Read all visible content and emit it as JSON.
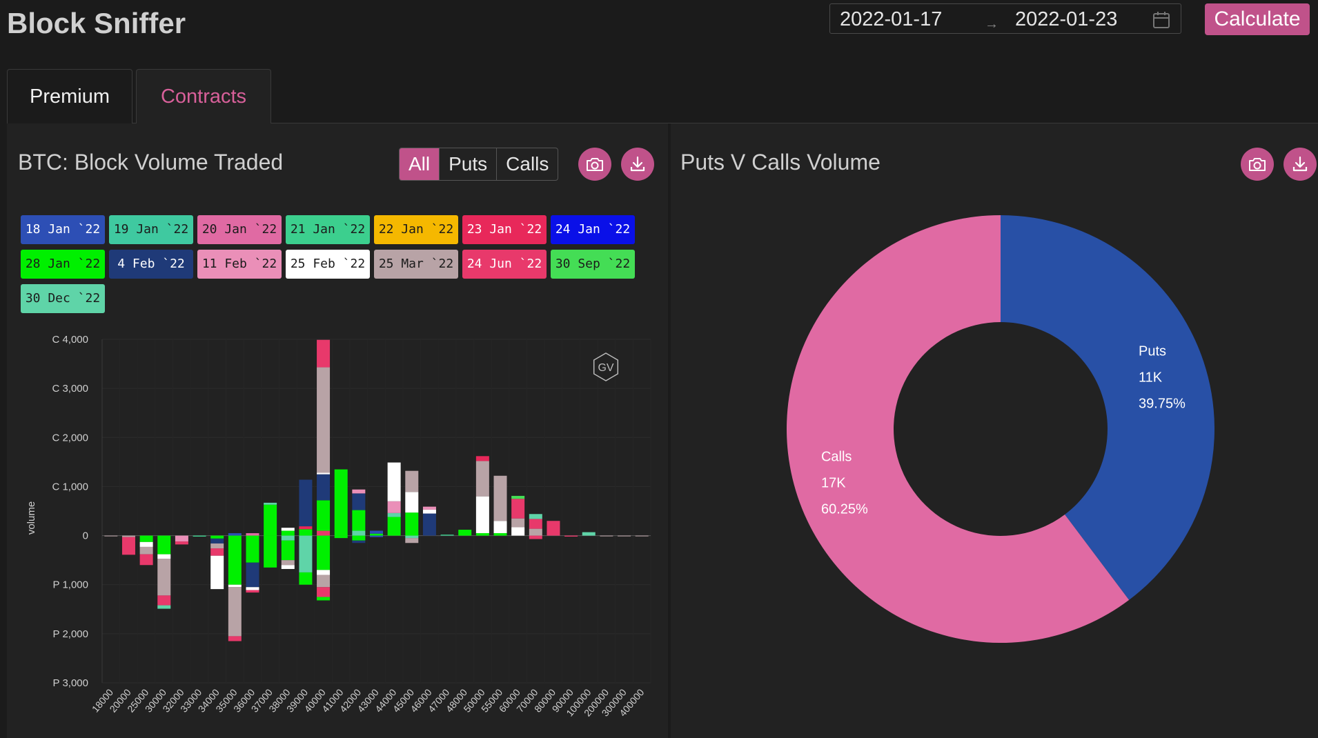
{
  "app": {
    "title": "Block Sniffer"
  },
  "date_range": {
    "start": "2022-01-17",
    "separator": "→",
    "end": "2022-01-23"
  },
  "calculate_label": "Calculate",
  "tabs": [
    {
      "label": "Premium"
    },
    {
      "label": "Contracts"
    }
  ],
  "left_panel": {
    "title": "BTC: Block Volume Traded",
    "filters": [
      "All",
      "Puts",
      "Calls"
    ],
    "active_filter": "All",
    "watermark": "GV",
    "expiries": [
      {
        "label": "18 Jan `22",
        "color": "#2d4fb5",
        "text": "#ffffff"
      },
      {
        "label": "19 Jan `22",
        "color": "#3fc9a0",
        "text": "#1b1b1b"
      },
      {
        "label": "20 Jan `22",
        "color": "#e06aa3",
        "text": "#1b1b1b"
      },
      {
        "label": "21 Jan `22",
        "color": "#3ccf8e",
        "text": "#1b1b1b"
      },
      {
        "label": "22 Jan `22",
        "color": "#f5b800",
        "text": "#1b1b1b"
      },
      {
        "label": "23 Jan `22",
        "color": "#e8285a",
        "text": "#ffffff"
      },
      {
        "label": "24 Jan `22",
        "color": "#0a10e8",
        "text": "#ffffff"
      },
      {
        "label": "28 Jan `22",
        "color": "#00f000",
        "text": "#1b1b1b"
      },
      {
        "label": "4 Feb `22",
        "color": "#1f3a78",
        "text": "#ffffff"
      },
      {
        "label": "11 Feb `22",
        "color": "#ea8fb8",
        "text": "#1b1b1b"
      },
      {
        "label": "25 Feb `22",
        "color": "#ffffff",
        "text": "#1b1b1b"
      },
      {
        "label": "25 Mar `22",
        "color": "#b8a3a6",
        "text": "#1b1b1b"
      },
      {
        "label": "24 Jun `22",
        "color": "#e8396b",
        "text": "#ffffff"
      },
      {
        "label": "30 Sep `22",
        "color": "#44dd55",
        "text": "#1b1b1b"
      },
      {
        "label": "30 Dec `22",
        "color": "#5fd4a8",
        "text": "#1b1b1b"
      }
    ]
  },
  "right_panel": {
    "title": "Puts V Calls Volume"
  },
  "icons": [
    "calendar-icon",
    "camera-icon",
    "download-icon"
  ],
  "chart_data": [
    {
      "type": "bar",
      "stacked": true,
      "ylabel": "volume",
      "ytick_labels": [
        "C 4,000",
        "C 3,000",
        "C 2,000",
        "C 1,000",
        "0",
        "P 1,000",
        "P 2,000",
        "P 3,000"
      ],
      "ylim": [
        -3000,
        4000
      ],
      "categories": [
        "18000",
        "20000",
        "25000",
        "30000",
        "32000",
        "33000",
        "34000",
        "35000",
        "36000",
        "37000",
        "38000",
        "39000",
        "40000",
        "41000",
        "42000",
        "43000",
        "44000",
        "45000",
        "46000",
        "47000",
        "48000",
        "50000",
        "55000",
        "60000",
        "70000",
        "80000",
        "90000",
        "100000",
        "200000",
        "300000",
        "400000"
      ],
      "bars": [
        {
          "strike": "18000",
          "calls": [],
          "puts": [
            [
              "#b8a3a6",
              15
            ]
          ]
        },
        {
          "strike": "20000",
          "calls": [],
          "puts": [
            [
              "#b8a3a6",
              30
            ],
            [
              "#e8396b",
              360
            ]
          ]
        },
        {
          "strike": "25000",
          "calls": [],
          "puts": [
            [
              "#00f000",
              130
            ],
            [
              "#ffffff",
              100
            ],
            [
              "#b8a3a6",
              150
            ],
            [
              "#e8396b",
              220
            ]
          ]
        },
        {
          "strike": "30000",
          "calls": [],
          "puts": [
            [
              "#00f000",
              380
            ],
            [
              "#ffffff",
              90
            ],
            [
              "#b8a3a6",
              750
            ],
            [
              "#e8396b",
              200
            ],
            [
              "#5fd4a8",
              70
            ]
          ]
        },
        {
          "strike": "32000",
          "calls": [],
          "puts": [
            [
              "#ea8fb8",
              120
            ],
            [
              "#e8396b",
              60
            ]
          ]
        },
        {
          "strike": "33000",
          "calls": [],
          "puts": [
            [
              "#3ccf8e",
              20
            ]
          ]
        },
        {
          "strike": "34000",
          "calls": [],
          "puts": [
            [
              "#00f000",
              60
            ],
            [
              "#1f3a78",
              100
            ],
            [
              "#b8a3a6",
              100
            ],
            [
              "#e8396b",
              150
            ],
            [
              "#ffffff",
              680
            ]
          ]
        },
        {
          "strike": "35000",
          "calls": [
            [
              "#2d4fb5",
              50
            ]
          ],
          "puts": [
            [
              "#00f000",
              1000
            ],
            [
              "#ffffff",
              50
            ],
            [
              "#b8a3a6",
              1000
            ],
            [
              "#e8396b",
              100
            ]
          ]
        },
        {
          "strike": "36000",
          "calls": [
            [
              "#e06aa3",
              50
            ]
          ],
          "puts": [
            [
              "#00f000",
              550
            ],
            [
              "#1f3a78",
              500
            ],
            [
              "#ffffff",
              60
            ],
            [
              "#e8396b",
              50
            ]
          ]
        },
        {
          "strike": "37000",
          "calls": [
            [
              "#00f000",
              630
            ],
            [
              "#5fd4a8",
              40
            ]
          ],
          "puts": [
            [
              "#00f000",
              650
            ]
          ]
        },
        {
          "strike": "38000",
          "calls": [
            [
              "#00f000",
              100
            ],
            [
              "#ffffff",
              60
            ]
          ],
          "puts": [
            [
              "#5fd4a8",
              100
            ],
            [
              "#00f000",
              400
            ],
            [
              "#b8a3a6",
              100
            ],
            [
              "#ffffff",
              80
            ]
          ]
        },
        {
          "strike": "39000",
          "calls": [
            [
              "#00f000",
              130
            ],
            [
              "#e8285a",
              60
            ],
            [
              "#1f3a78",
              950
            ]
          ],
          "puts": [
            [
              "#5fd4a8",
              750
            ],
            [
              "#00f000",
              250
            ]
          ]
        },
        {
          "strike": "40000",
          "calls": [
            [
              "#e8396b",
              100
            ],
            [
              "#00f000",
              620
            ],
            [
              "#1f3a78",
              530
            ],
            [
              "#ffffff",
              30
            ],
            [
              "#b8a3a6",
              2150
            ],
            [
              "#e8396b",
              560
            ]
          ],
          "puts": [
            [
              "#00f000",
              700
            ],
            [
              "#ffffff",
              100
            ],
            [
              "#b8a3a6",
              250
            ],
            [
              "#e8396b",
              200
            ],
            [
              "#00f000",
              70
            ]
          ]
        },
        {
          "strike": "41000",
          "calls": [
            [
              "#00f000",
              1350
            ]
          ],
          "puts": [
            [
              "#00f000",
              50
            ]
          ]
        },
        {
          "strike": "42000",
          "calls": [
            [
              "#5fd4a8",
              100
            ],
            [
              "#00f000",
              420
            ],
            [
              "#1f3a78",
              340
            ],
            [
              "#ea8fb8",
              80
            ]
          ],
          "puts": [
            [
              "#00f000",
              100
            ],
            [
              "#1f3a78",
              50
            ]
          ]
        },
        {
          "strike": "43000",
          "calls": [
            [
              "#00f000",
              40
            ],
            [
              "#2d4fb5",
              60
            ]
          ],
          "puts": [
            [
              "#2d4fb5",
              30
            ]
          ]
        },
        {
          "strike": "44000",
          "calls": [
            [
              "#00f000",
              380
            ],
            [
              "#5fd4a8",
              80
            ],
            [
              "#ea8fb8",
              240
            ],
            [
              "#ffffff",
              790
            ]
          ],
          "puts": []
        },
        {
          "strike": "45000",
          "calls": [
            [
              "#00f000",
              470
            ],
            [
              "#ffffff",
              420
            ],
            [
              "#b8a3a6",
              430
            ]
          ],
          "puts": [
            [
              "#5fd4a8",
              50
            ],
            [
              "#b8a3a6",
              100
            ]
          ]
        },
        {
          "strike": "46000",
          "calls": [
            [
              "#1f3a78",
              450
            ],
            [
              "#ffffff",
              80
            ],
            [
              "#ea8fb8",
              60
            ]
          ],
          "puts": []
        },
        {
          "strike": "47000",
          "calls": [
            [
              "#3ccf8e",
              20
            ]
          ],
          "puts": []
        },
        {
          "strike": "48000",
          "calls": [
            [
              "#00f000",
              120
            ]
          ],
          "puts": []
        },
        {
          "strike": "50000",
          "calls": [
            [
              "#00f000",
              50
            ],
            [
              "#ffffff",
              750
            ],
            [
              "#b8a3a6",
              720
            ],
            [
              "#e8285a",
              100
            ]
          ],
          "puts": []
        },
        {
          "strike": "55000",
          "calls": [
            [
              "#00f000",
              50
            ],
            [
              "#ffffff",
              250
            ],
            [
              "#b8a3a6",
              920
            ]
          ],
          "puts": []
        },
        {
          "strike": "60000",
          "calls": [
            [
              "#ffffff",
              170
            ],
            [
              "#b8a3a6",
              180
            ],
            [
              "#e8396b",
              400
            ],
            [
              "#44dd55",
              60
            ]
          ],
          "puts": []
        },
        {
          "strike": "70000",
          "calls": [
            [
              "#b8a3a6",
              140
            ],
            [
              "#e8396b",
              200
            ],
            [
              "#5fd4a8",
              100
            ]
          ],
          "puts": [
            [
              "#e8396b",
              70
            ]
          ]
        },
        {
          "strike": "80000",
          "calls": [
            [
              "#e8396b",
              300
            ]
          ],
          "puts": []
        },
        {
          "strike": "90000",
          "calls": [],
          "puts": [
            [
              "#e8396b",
              20
            ]
          ]
        },
        {
          "strike": "100000",
          "calls": [
            [
              "#5fd4a8",
              70
            ]
          ],
          "puts": []
        },
        {
          "strike": "200000",
          "calls": [],
          "puts": [
            [
              "#b8a3a6",
              15
            ]
          ]
        },
        {
          "strike": "300000",
          "calls": [],
          "puts": [
            [
              "#b8a3a6",
              15
            ]
          ]
        },
        {
          "strike": "400000",
          "calls": [],
          "puts": [
            [
              "#b8a3a6",
              15
            ]
          ]
        }
      ]
    },
    {
      "type": "pie",
      "donut": true,
      "slices": [
        {
          "name": "Puts",
          "value_label": "11K",
          "percent_label": "39.75%",
          "percent": 39.75,
          "color": "#2850a6"
        },
        {
          "name": "Calls",
          "value_label": "17K",
          "percent_label": "60.25%",
          "percent": 60.25,
          "color": "#e06aa3"
        }
      ]
    }
  ]
}
